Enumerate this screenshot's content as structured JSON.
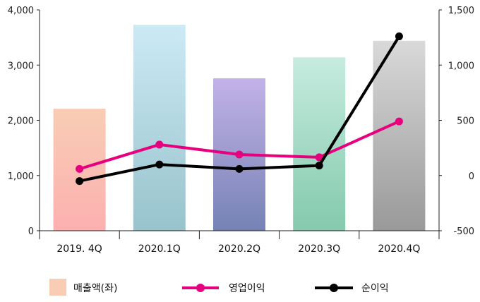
{
  "chart_data": {
    "type": "bar",
    "categories": [
      "2019. 4Q",
      "2020.1Q",
      "2020.2Q",
      "2020.3Q",
      "2020.4Q"
    ],
    "series": [
      {
        "name": "매출액(좌)",
        "type": "bar",
        "axis": "left",
        "values": [
          2210,
          3730,
          2760,
          3140,
          3440
        ]
      },
      {
        "name": "영업이익",
        "type": "line",
        "axis": "right",
        "color": "#e6007e",
        "values": [
          60,
          280,
          190,
          165,
          490
        ]
      },
      {
        "name": "순이익",
        "type": "line",
        "axis": "right",
        "color": "#000000",
        "values": [
          -50,
          100,
          60,
          90,
          1260
        ]
      }
    ],
    "left_axis": {
      "min": 0,
      "max": 4000,
      "ticks": [
        0,
        1000,
        2000,
        3000,
        4000
      ],
      "tick_labels": [
        "0",
        "1,000",
        "2,000",
        "3,000",
        "4,000"
      ]
    },
    "right_axis": {
      "min": -500,
      "max": 1500,
      "ticks": [
        -500,
        0,
        500,
        1000,
        1500
      ],
      "tick_labels": [
        "-500",
        "0",
        "500",
        "1,000",
        "1,500"
      ]
    },
    "bar_gradients": [
      [
        "#f8cdb4",
        "#fcb0b0"
      ],
      [
        "#cceaf6",
        "#98c3cc"
      ],
      [
        "#c2b2e8",
        "#7682b5"
      ],
      [
        "#c6ecdf",
        "#84c9ad"
      ],
      [
        "#d9d9d9",
        "#999999"
      ]
    ],
    "legend_placement": "bottom",
    "grid": false
  }
}
